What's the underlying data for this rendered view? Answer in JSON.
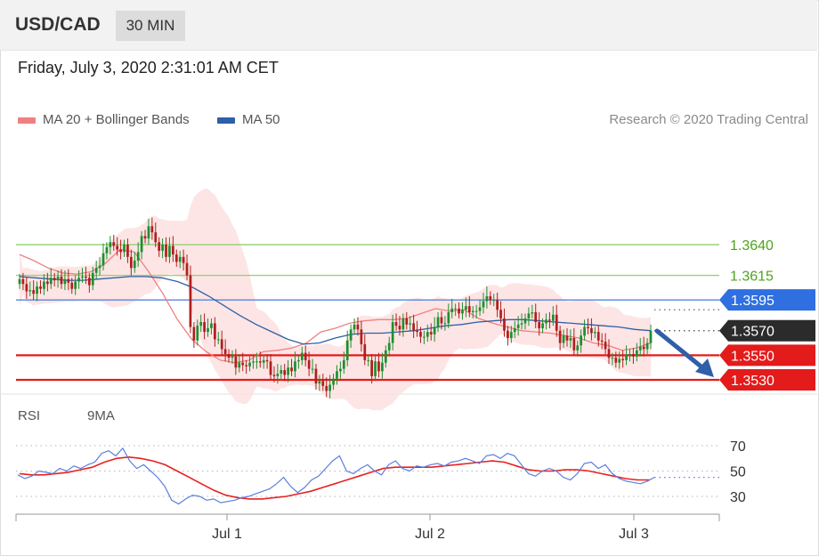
{
  "header": {
    "symbol": "USD/CAD",
    "timeframe": "30 MIN"
  },
  "datetime": "Friday, July 3, 2020 2:31:01 AM CET",
  "legend": {
    "ma20": {
      "label": "MA 20 + Bollinger Bands",
      "color": "#f08080"
    },
    "ma50": {
      "label": "MA 50",
      "color": "#2e5fa8"
    },
    "credit": "Research © 2020 Trading Central"
  },
  "rsi_legend": {
    "rsi": {
      "label": "RSI",
      "color": "#5b7fdc"
    },
    "ma9": {
      "label": "9MA",
      "color": "#e82020"
    }
  },
  "levels": [
    {
      "value": 1.364,
      "label": "1.3640",
      "style": "green"
    },
    {
      "value": 1.3615,
      "label": "1.3615",
      "style": "green"
    },
    {
      "value": 1.3595,
      "label": "1.3595",
      "style": "blue"
    },
    {
      "value": 1.357,
      "label": "1.3570",
      "style": "dark"
    },
    {
      "value": 1.355,
      "label": "1.3550",
      "style": "red"
    },
    {
      "value": 1.353,
      "label": "1.3530",
      "style": "red"
    }
  ],
  "chart_data": [
    {
      "type": "candlestick",
      "x_ticks": [
        "Jul 1",
        "Jul 2",
        "Jul 3"
      ],
      "price_range": [
        1.3505,
        1.3725
      ],
      "series": [
        {
          "name": "USD/CAD",
          "ohlc_close": [
            1.3612,
            1.3608,
            1.3602,
            1.3603,
            1.36,
            1.3606,
            1.3604,
            1.361,
            1.3608,
            1.3613,
            1.3611,
            1.3614,
            1.3608,
            1.3612,
            1.3609,
            1.3604,
            1.361,
            1.3613,
            1.3614,
            1.3613,
            1.3607,
            1.3617,
            1.3621,
            1.3623,
            1.3633,
            1.3638,
            1.3642,
            1.3639,
            1.3636,
            1.3634,
            1.364,
            1.363,
            1.3621,
            1.3627,
            1.3634,
            1.3647,
            1.3645,
            1.3655,
            1.365,
            1.3642,
            1.3635,
            1.364,
            1.363,
            1.3639,
            1.3632,
            1.3626,
            1.363,
            1.3625,
            1.3615,
            1.3573,
            1.3562,
            1.3574,
            1.3577,
            1.3569,
            1.3572,
            1.3576,
            1.3563,
            1.3563,
            1.3555,
            1.3551,
            1.3548,
            1.3549,
            1.354,
            1.3544,
            1.3542,
            1.3541,
            1.3544,
            1.3545,
            1.3545,
            1.3544,
            1.3546,
            1.3545,
            1.3534,
            1.3533,
            1.3535,
            1.3538,
            1.3534,
            1.354,
            1.3537,
            1.3545,
            1.3546,
            1.3552,
            1.3546,
            1.3539,
            1.3539,
            1.3527,
            1.3529,
            1.3525,
            1.3521,
            1.3526,
            1.3531,
            1.3537,
            1.3539,
            1.3546,
            1.3562,
            1.3571,
            1.3575,
            1.3571,
            1.3559,
            1.3546,
            1.3546,
            1.3533,
            1.3545,
            1.3537,
            1.3544,
            1.3554,
            1.356,
            1.3577,
            1.3574,
            1.3571,
            1.358,
            1.3575,
            1.3576,
            1.357,
            1.3569,
            1.3565,
            1.3565,
            1.3569,
            1.3567,
            1.3573,
            1.3581,
            1.3576,
            1.3576,
            1.3585,
            1.3588,
            1.3588,
            1.3584,
            1.3587,
            1.359,
            1.3585,
            1.3586,
            1.3586,
            1.3589,
            1.3594,
            1.3598,
            1.3595,
            1.3595,
            1.3587,
            1.358,
            1.357,
            1.3564,
            1.3569,
            1.3572,
            1.3575,
            1.3576,
            1.358,
            1.3584,
            1.3585,
            1.3577,
            1.3572,
            1.3576,
            1.3579,
            1.3578,
            1.3583,
            1.357,
            1.356,
            1.3566,
            1.3562,
            1.3564,
            1.3554,
            1.3558,
            1.3566,
            1.3573,
            1.3572,
            1.3568,
            1.3569,
            1.3562,
            1.3561,
            1.3555,
            1.3548,
            1.3548,
            1.3544,
            1.3547,
            1.3546,
            1.355,
            1.3551,
            1.3549,
            1.3554,
            1.3557,
            1.3555,
            1.356,
            1.357
          ],
          "close_last": 1.357
        },
        {
          "name": "MA 20",
          "values": [
            1.3632,
            1.3627,
            1.3621,
            1.3617,
            1.3616,
            1.3618,
            1.3625,
            1.3636,
            1.3634,
            1.3618,
            1.36,
            1.3579,
            1.3563,
            1.3553,
            1.3546,
            1.3544,
            1.3546,
            1.3553,
            1.3554,
            1.3556,
            1.356,
            1.3569,
            1.3572,
            1.3576,
            1.3578,
            1.3579,
            1.3579,
            1.358,
            1.3584,
            1.3588,
            1.3586,
            1.3587,
            1.358,
            1.3576,
            1.3573,
            1.357,
            1.3569,
            1.3568,
            1.3566,
            1.3564,
            1.356,
            1.3558,
            1.3554,
            1.3556,
            1.356
          ]
        },
        {
          "name": "MA 50",
          "values": [
            1.3614,
            1.3613,
            1.3612,
            1.3611,
            1.3611,
            1.3612,
            1.3613,
            1.3614,
            1.3614,
            1.3613,
            1.361,
            1.3605,
            1.3598,
            1.359,
            1.3582,
            1.3575,
            1.3569,
            1.3563,
            1.3559,
            1.356,
            1.3564,
            1.3567,
            1.3568,
            1.3568,
            1.3569,
            1.357,
            1.3572,
            1.3574,
            1.3575,
            1.3577,
            1.3578,
            1.3579,
            1.3579,
            1.3578,
            1.3577,
            1.3576,
            1.3575,
            1.3574,
            1.3573,
            1.3571,
            1.357
          ]
        }
      ]
    },
    {
      "type": "line",
      "title": "RSI",
      "y_ticks": [
        30,
        50,
        70
      ],
      "ylim": [
        20,
        78
      ],
      "series": [
        {
          "name": "RSI",
          "values": [
            47,
            44,
            46,
            50,
            49,
            48,
            52,
            50,
            54,
            52,
            55,
            57,
            64,
            66,
            62,
            68,
            58,
            52,
            55,
            50,
            45,
            38,
            27,
            24,
            28,
            31,
            30,
            27,
            28,
            25,
            26,
            27,
            29,
            30,
            32,
            34,
            36,
            40,
            45,
            38,
            33,
            37,
            43,
            46,
            52,
            58,
            62,
            50,
            48,
            52,
            55,
            50,
            47,
            55,
            58,
            52,
            50,
            54,
            53,
            55,
            56,
            54,
            57,
            58,
            60,
            58,
            56,
            62,
            63,
            60,
            64,
            62,
            55,
            48,
            46,
            50,
            52,
            50,
            45,
            43,
            48,
            56,
            57,
            52,
            55,
            48,
            44,
            42,
            41,
            40,
            42,
            45
          ]
        },
        {
          "name": "9MA",
          "values": [
            48,
            47,
            47,
            48,
            49,
            51,
            53,
            57,
            60,
            61,
            60,
            58,
            55,
            50,
            45,
            40,
            35,
            31,
            29,
            28,
            28,
            29,
            30,
            32,
            34,
            37,
            40,
            43,
            46,
            49,
            52,
            53,
            53,
            53,
            53,
            54,
            55,
            56,
            57,
            58,
            57,
            54,
            51,
            50,
            50,
            51,
            51,
            50,
            48,
            46,
            44,
            43,
            43
          ]
        }
      ]
    }
  ]
}
